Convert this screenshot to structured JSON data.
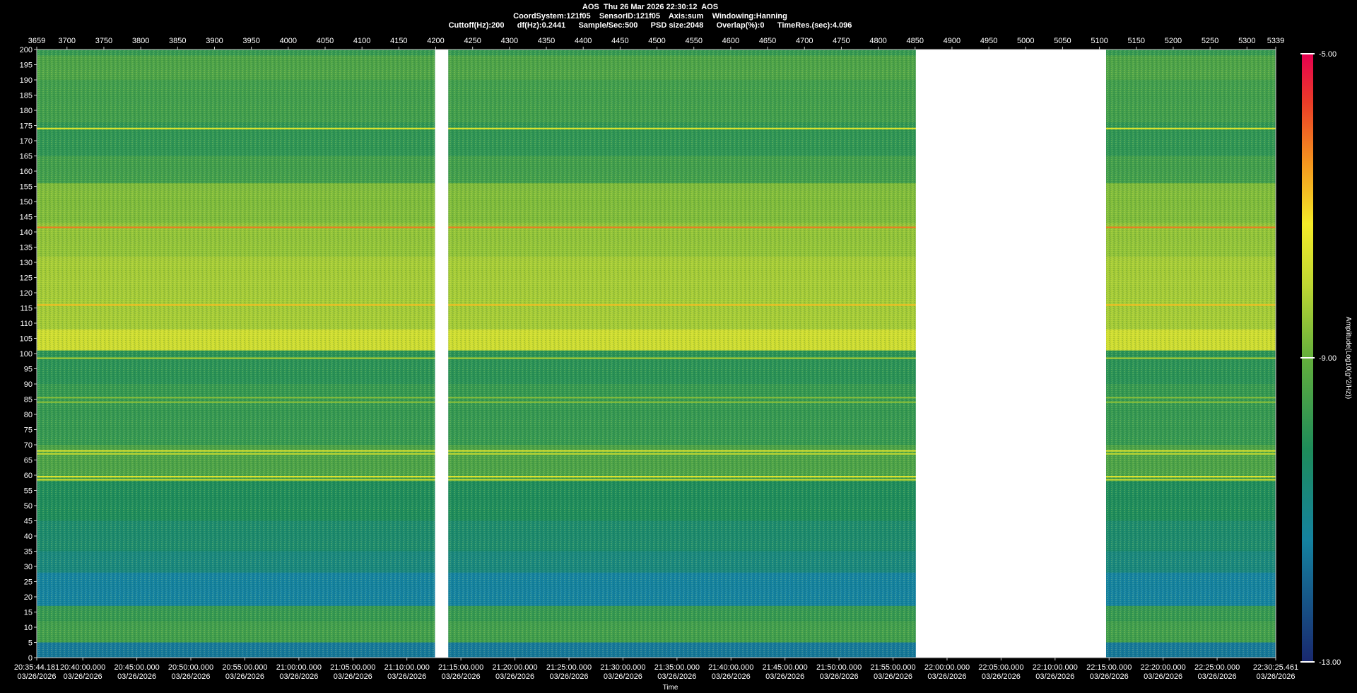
{
  "header": {
    "line1": "AOS  Thu 26 Mar 2026 22:30:12  AOS",
    "line2": "CoordSystem:121f05    SensorID:121f05    Axis:sum    Windowing:Hanning",
    "line3": "Cuttoff(Hz):200      df(Hz):0.2441      Sample/Sec:500      PSD size:2048      Overlap(%):0      TimeRes.(sec):4.096"
  },
  "chart_data": {
    "type": "heatmap",
    "title": "AOS  Thu 26 Mar 2026 22:30:12  AOS",
    "xlabel": "Time",
    "ylabel": "",
    "colorbar_label": "Amplitude(Log10(g^2/Hz))",
    "colorbar_ticks": [
      "-5.00",
      "-9.00",
      "-13.00"
    ],
    "colorbar_range": [
      -13,
      -5
    ],
    "colors": {
      "low": "#1a2a6c",
      "mid": "#8cc63f",
      "high": "#e8004a"
    },
    "top_axis_range": [
      3659,
      5339
    ],
    "top_ticks": [
      "3659",
      "3700",
      "3750",
      "3800",
      "3850",
      "3900",
      "3950",
      "4000",
      "4050",
      "4100",
      "4150",
      "4200",
      "4250",
      "4300",
      "4350",
      "4400",
      "4450",
      "4500",
      "4550",
      "4600",
      "4650",
      "4700",
      "4750",
      "4800",
      "4850",
      "4900",
      "4950",
      "5000",
      "5050",
      "5100",
      "5150",
      "5200",
      "5250",
      "5300",
      "5339"
    ],
    "ylim": [
      0,
      200
    ],
    "y_ticks": [
      200,
      195,
      190,
      185,
      180,
      175,
      170,
      165,
      160,
      155,
      150,
      145,
      140,
      135,
      130,
      125,
      120,
      115,
      110,
      105,
      100,
      95,
      90,
      85,
      80,
      75,
      70,
      65,
      60,
      55,
      50,
      45,
      40,
      35,
      30,
      25,
      20,
      15,
      10,
      5,
      0
    ],
    "x_ticks": [
      {
        "time": "20:35:44.181",
        "date": "03/26/2026"
      },
      {
        "time": "20:40:00.000",
        "date": "03/26/2026"
      },
      {
        "time": "20:45:00.000",
        "date": "03/26/2026"
      },
      {
        "time": "20:50:00.000",
        "date": "03/26/2026"
      },
      {
        "time": "20:55:00.000",
        "date": "03/26/2026"
      },
      {
        "time": "21:00:00.000",
        "date": "03/26/2026"
      },
      {
        "time": "21:05:00.000",
        "date": "03/26/2026"
      },
      {
        "time": "21:10:00.000",
        "date": "03/26/2026"
      },
      {
        "time": "21:15:00.000",
        "date": "03/26/2026"
      },
      {
        "time": "21:20:00.000",
        "date": "03/26/2026"
      },
      {
        "time": "21:25:00.000",
        "date": "03/26/2026"
      },
      {
        "time": "21:30:00.000",
        "date": "03/26/2026"
      },
      {
        "time": "21:35:00.000",
        "date": "03/26/2026"
      },
      {
        "time": "21:40:00.000",
        "date": "03/26/2026"
      },
      {
        "time": "21:45:00.000",
        "date": "03/26/2026"
      },
      {
        "time": "21:50:00.000",
        "date": "03/26/2026"
      },
      {
        "time": "21:55:00.000",
        "date": "03/26/2026"
      },
      {
        "time": "22:00:00.000",
        "date": "03/26/2026"
      },
      {
        "time": "22:05:00.000",
        "date": "03/26/2026"
      },
      {
        "time": "22:10:00.000",
        "date": "03/26/2026"
      },
      {
        "time": "22:15:00.000",
        "date": "03/26/2026"
      },
      {
        "time": "22:20:00.000",
        "date": "03/26/2026"
      },
      {
        "time": "22:25:00.000",
        "date": "03/26/2026"
      },
      {
        "time": "22:30:25.461",
        "date": "03/26/2026"
      }
    ],
    "data_gaps_top_axis": [
      [
        4199,
        4217
      ],
      [
        4851,
        5109
      ]
    ],
    "frequency_lines_hz": [
      {
        "hz": 174,
        "amplitude": -7.5
      },
      {
        "hz": 141.5,
        "amplitude": -6.2
      },
      {
        "hz": 116,
        "amplitude": -6.8
      },
      {
        "hz": 98.5,
        "amplitude": -8.2
      },
      {
        "hz": 85.5,
        "amplitude": -8.6
      },
      {
        "hz": 84,
        "amplitude": -8.6
      },
      {
        "hz": 68,
        "amplitude": -7.6
      },
      {
        "hz": 67,
        "amplitude": -8.0
      },
      {
        "hz": 59.5,
        "amplitude": -7.4
      },
      {
        "hz": 58.5,
        "amplitude": -7.8
      }
    ],
    "frequency_bands_hz": [
      {
        "from": 198,
        "to": 200,
        "amplitude": -9.8
      },
      {
        "from": 190,
        "to": 198,
        "amplitude": -9.4
      },
      {
        "from": 176,
        "to": 190,
        "amplitude": -9.6
      },
      {
        "from": 165,
        "to": 176,
        "amplitude": -9.9
      },
      {
        "from": 156,
        "to": 165,
        "amplitude": -9.6
      },
      {
        "from": 143,
        "to": 156,
        "amplitude": -8.7
      },
      {
        "from": 132,
        "to": 143,
        "amplitude": -8.5
      },
      {
        "from": 118,
        "to": 132,
        "amplitude": -8.3
      },
      {
        "from": 108,
        "to": 118,
        "amplitude": -8.3
      },
      {
        "from": 101,
        "to": 108,
        "amplitude": -7.8
      },
      {
        "from": 90,
        "to": 101,
        "amplitude": -10.0
      },
      {
        "from": 70,
        "to": 90,
        "amplitude": -9.8
      },
      {
        "from": 60,
        "to": 70,
        "amplitude": -9.4
      },
      {
        "from": 45,
        "to": 58,
        "amplitude": -10.2
      },
      {
        "from": 35,
        "to": 45,
        "amplitude": -10.5
      },
      {
        "from": 28,
        "to": 35,
        "amplitude": -10.8
      },
      {
        "from": 17,
        "to": 28,
        "amplitude": -11.4
      },
      {
        "from": 12,
        "to": 17,
        "amplitude": -9.8
      },
      {
        "from": 5,
        "to": 12,
        "amplitude": -9.6
      },
      {
        "from": 0,
        "to": 5,
        "amplitude": -11.6
      }
    ]
  }
}
